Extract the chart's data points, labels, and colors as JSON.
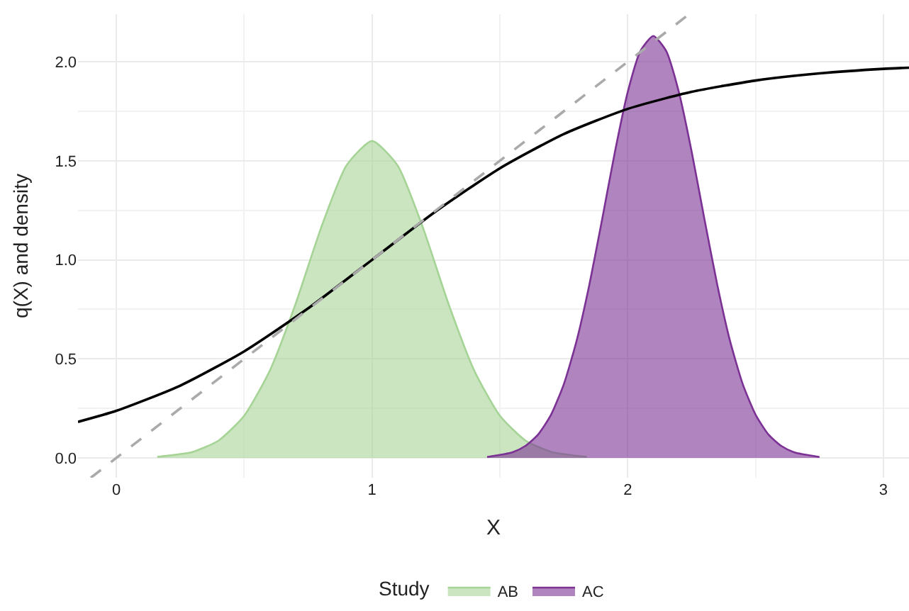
{
  "chart_data": {
    "type": "area",
    "xlabel": "X",
    "ylabel": "q(X) and density",
    "legend_title": "Study",
    "xlim": [
      -0.15,
      3.1
    ],
    "ylim": [
      -0.1,
      2.24
    ],
    "xticks": [
      0,
      1,
      2,
      3
    ],
    "yticks": [
      {
        "value": 0,
        "label": "0.0"
      },
      {
        "value": 0.5,
        "label": "0.5"
      },
      {
        "value": 1,
        "label": "1.0"
      },
      {
        "value": 1.5,
        "label": "1.5"
      },
      {
        "value": 2,
        "label": "2.0"
      }
    ],
    "grid": true,
    "legend": "bottom",
    "series": [
      {
        "name": "AB",
        "color": "#a6d496",
        "x": [
          0.16,
          0.3,
          0.4,
          0.5,
          0.6,
          0.7,
          0.8,
          0.9,
          1.0,
          1.1,
          1.2,
          1.3,
          1.4,
          1.5,
          1.6,
          1.7,
          1.84
        ],
        "values": [
          0.005,
          0.031,
          0.088,
          0.213,
          0.44,
          0.774,
          1.159,
          1.476,
          1.6,
          1.476,
          1.159,
          0.774,
          0.44,
          0.213,
          0.088,
          0.031,
          0.005
        ]
      },
      {
        "name": "AC",
        "color": "#7b3294",
        "x": [
          1.45,
          1.55,
          1.6,
          1.65,
          1.7,
          1.75,
          1.8,
          1.85,
          1.9,
          1.95,
          2.0,
          2.05,
          2.1,
          2.15,
          2.2,
          2.25,
          2.3,
          2.35,
          2.4,
          2.45,
          2.5,
          2.55,
          2.6,
          2.65,
          2.75
        ],
        "values": [
          0.005,
          0.029,
          0.061,
          0.119,
          0.218,
          0.372,
          0.591,
          0.875,
          1.205,
          1.546,
          1.847,
          2.055,
          2.13,
          2.055,
          1.847,
          1.546,
          1.205,
          0.875,
          0.591,
          0.372,
          0.218,
          0.119,
          0.061,
          0.029,
          0.005
        ]
      },
      {
        "type": "line",
        "color": "#000000",
        "x": [
          -0.15,
          0,
          0.25,
          0.5,
          0.75,
          1,
          1.25,
          1.5,
          1.75,
          2,
          2.25,
          2.5,
          2.75,
          3,
          3.1
        ],
        "values": [
          0.182,
          0.238,
          0.365,
          0.538,
          0.755,
          1,
          1.245,
          1.462,
          1.635,
          1.762,
          1.848,
          1.905,
          1.941,
          1.964,
          1.97
        ]
      },
      {
        "type": "line",
        "color": "#aaaaaa",
        "line_style": "dashed",
        "x": [
          -0.1,
          2.24
        ],
        "values": [
          -0.1,
          2.24
        ]
      }
    ]
  }
}
